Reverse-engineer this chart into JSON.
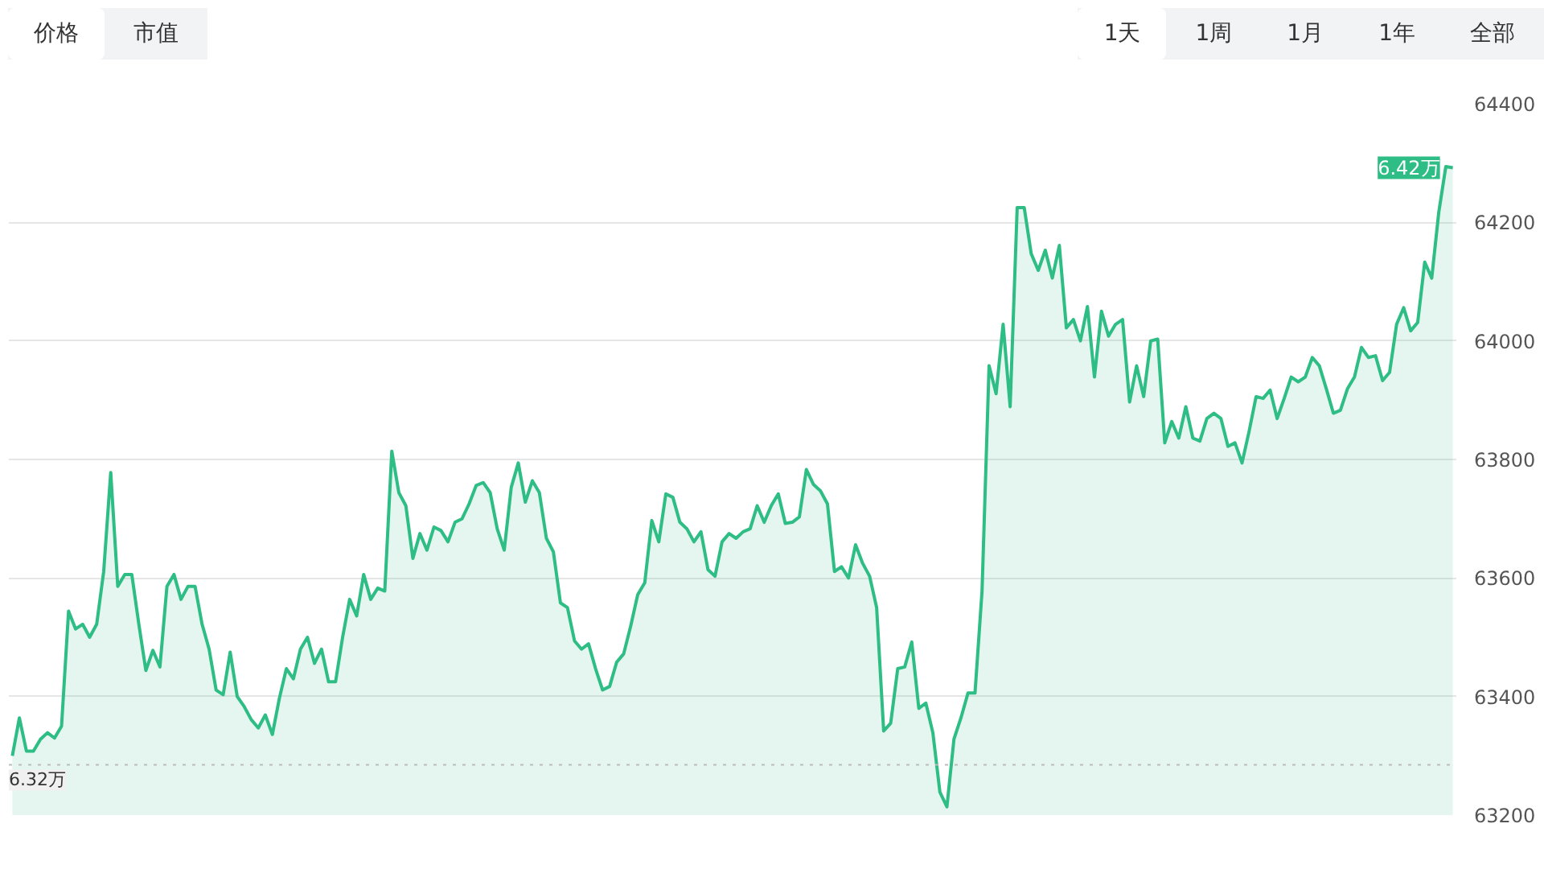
{
  "chart_data": {
    "type": "area",
    "categories": [
      null,
      null,
      null,
      null,
      null,
      null,
      null,
      null,
      null,
      null,
      null,
      null,
      null,
      null,
      null,
      null,
      null,
      null,
      null,
      null,
      null,
      null,
      null,
      null,
      null,
      null,
      null,
      null,
      null,
      null,
      null,
      null,
      null,
      null,
      null,
      null,
      null,
      null,
      null,
      null,
      null,
      null,
      null,
      null,
      null,
      null,
      null,
      null,
      null,
      null,
      null,
      null,
      null,
      null,
      null,
      null,
      null,
      null,
      null,
      null,
      null,
      null,
      null,
      null,
      null,
      null,
      null,
      null,
      null,
      null,
      null,
      null,
      null,
      null,
      null,
      null,
      null,
      null,
      null,
      null,
      null,
      null,
      null,
      null,
      null,
      null,
      null,
      null,
      null,
      null,
      null,
      null,
      null,
      null,
      null,
      null,
      null,
      null,
      null,
      null,
      null,
      null,
      null,
      null,
      null,
      null,
      null,
      null,
      null,
      null,
      null,
      null,
      null,
      null,
      null,
      null,
      null,
      null,
      null,
      null,
      null,
      null,
      null,
      null,
      null,
      null,
      null,
      null,
      null,
      null,
      null,
      null,
      null,
      null,
      null,
      null,
      null,
      null,
      null,
      null,
      null,
      null,
      null,
      null,
      null,
      null,
      null,
      null,
      null,
      null,
      null,
      null,
      null,
      null,
      null,
      null,
      null,
      null,
      null,
      null,
      null,
      null,
      null,
      null,
      null,
      null,
      null,
      null,
      null,
      null,
      null,
      null,
      null,
      null,
      null,
      null,
      null,
      null,
      null,
      null,
      null,
      null,
      null,
      null,
      null,
      null,
      null,
      null,
      null,
      null,
      null,
      null,
      null,
      null,
      null,
      null,
      null,
      null,
      null,
      null,
      null,
      null,
      null,
      null,
      null,
      null
    ],
    "series": [
      {
        "color": "#2ebd85",
        "values": [
          63300,
          63364,
          63308,
          63308,
          63328,
          63339,
          63330,
          63350,
          63544,
          63514,
          63522,
          63500,
          63522,
          63611,
          63778,
          63586,
          63606,
          63606,
          63522,
          63444,
          63478,
          63450,
          63586,
          63606,
          63564,
          63586,
          63586,
          63522,
          63480,
          63411,
          63403,
          63475,
          63400,
          63383,
          63361,
          63347,
          63369,
          63336,
          63397,
          63447,
          63430,
          63480,
          63500,
          63456,
          63480,
          63425,
          63425,
          63500,
          63564,
          63536,
          63606,
          63564,
          63583,
          63578,
          63814,
          63744,
          63722,
          63633,
          63675,
          63647,
          63686,
          63680,
          63661,
          63694,
          63700,
          63725,
          63756,
          63761,
          63744,
          63683,
          63647,
          63753,
          63794,
          63728,
          63764,
          63744,
          63667,
          63644,
          63558,
          63550,
          63494,
          63480,
          63489,
          63447,
          63411,
          63417,
          63458,
          63472,
          63519,
          63572,
          63592,
          63697,
          63661,
          63742,
          63736,
          63694,
          63683,
          63661,
          63678,
          63614,
          63603,
          63661,
          63675,
          63667,
          63678,
          63683,
          63722,
          63694,
          63722,
          63742,
          63692,
          63694,
          63703,
          63783,
          63758,
          63747,
          63725,
          63611,
          63619,
          63600,
          63656,
          63625,
          63603,
          63550,
          63342,
          63355,
          63447,
          63450,
          63492,
          63380,
          63389,
          63339,
          63239,
          63214,
          63328,
          63364,
          63406,
          63406,
          63578,
          63958,
          63911,
          64028,
          63889,
          64225,
          64225,
          64147,
          64119,
          64153,
          64106,
          64161,
          64022,
          64036,
          64000,
          64058,
          63939,
          64050,
          64008,
          64028,
          64036,
          63897,
          63958,
          63906,
          64000,
          64003,
          63828,
          63864,
          63836,
          63889,
          63836,
          63831,
          63869,
          63878,
          63869,
          63822,
          63828,
          63794,
          63847,
          63906,
          63903,
          63917,
          63869,
          63903,
          63939,
          63931,
          63939,
          63972,
          63958,
          63919,
          63878,
          63883,
          63919,
          63939,
          63989,
          63972,
          63975,
          63933,
          63947,
          64028,
          64056,
          64017,
          64031,
          64133,
          64106,
          64217,
          64294,
          64292
        ]
      }
    ],
    "ylim": [
      63200,
      64400
    ],
    "yticks": [
      63200,
      63400,
      63600,
      63800,
      64000,
      64200,
      64400
    ],
    "grid": "y",
    "marker": "none",
    "line_style": "solid",
    "ref_lines": [
      {
        "axis": "y",
        "value": 63285,
        "label": "6.32万",
        "line_style": "dotted",
        "color": "#bbbbbb"
      }
    ],
    "annotations": [
      "价格",
      "市值",
      "1天",
      "1周",
      "1月",
      "1年",
      "全部",
      {
        "text": "6.42万",
        "y": 64292
      }
    ]
  }
}
